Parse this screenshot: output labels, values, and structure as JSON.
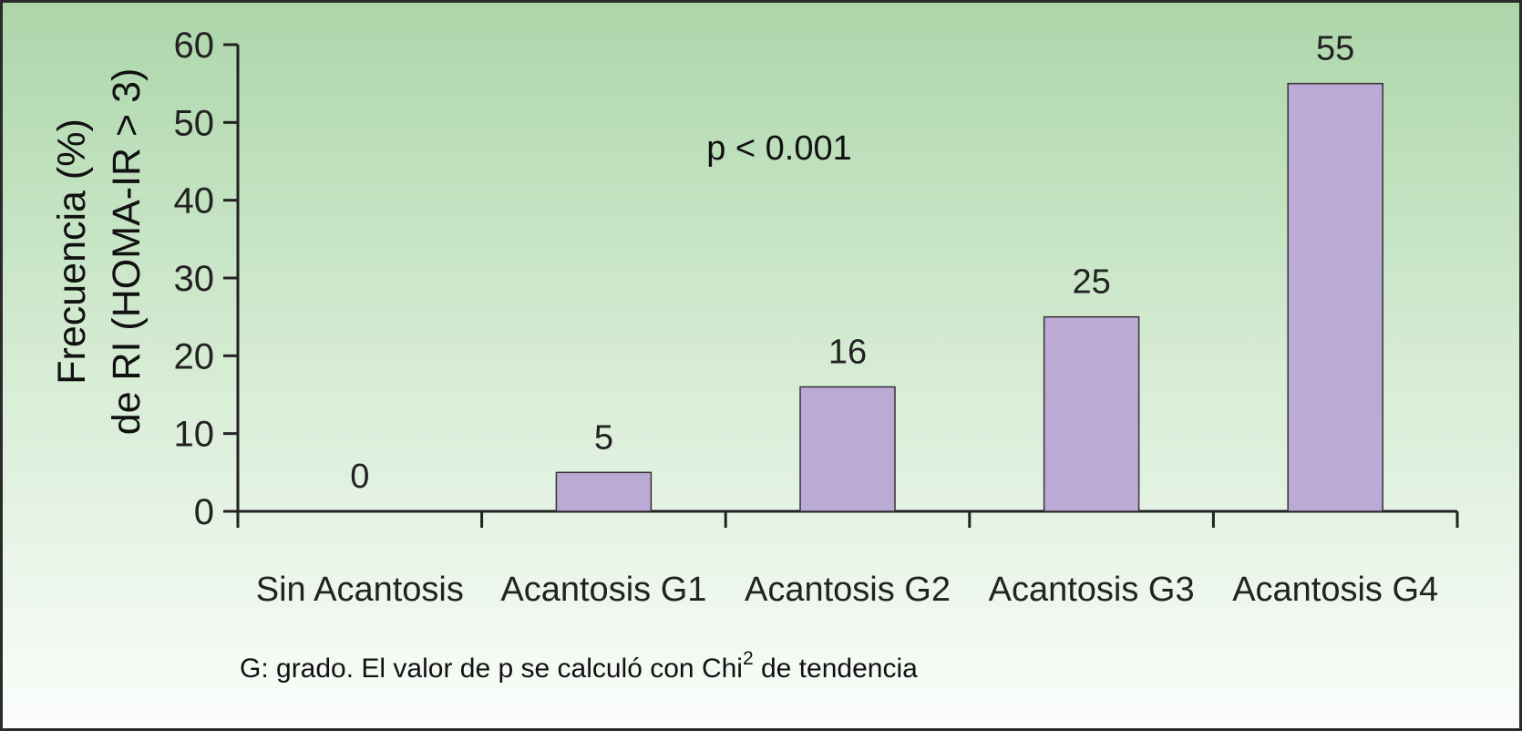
{
  "chart_data": {
    "type": "bar",
    "categories": [
      "Sin Acantosis",
      "Acantosis G1",
      "Acantosis G2",
      "Acantosis G3",
      "Acantosis G4"
    ],
    "values": [
      0,
      5,
      16,
      25,
      55
    ],
    "data_labels": [
      "0",
      "5",
      "16",
      "25",
      "55"
    ],
    "ylabel_line1": "Frecuencia (%)",
    "ylabel_line2": "de RI (HOMA-IR > 3)",
    "xlabel": "",
    "ylim": [
      0,
      60
    ],
    "yticks": [
      0,
      10,
      20,
      30,
      40,
      50,
      60
    ],
    "annotation": "p < 0.001",
    "footnote_text": "G: grado. El valor de p se calculó con Chi",
    "footnote_sup": "2",
    "footnote_tail": " de tendencia",
    "grid": false,
    "legend": "none",
    "bar_color": "#bcaad6",
    "bar_edge_color": "#333333"
  }
}
